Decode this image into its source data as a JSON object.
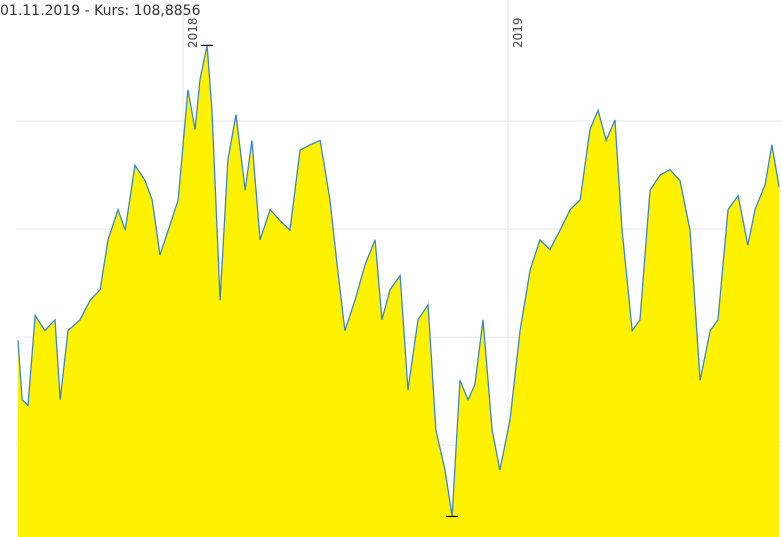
{
  "chart_data": {
    "type": "area",
    "title": "01.11.2019  -  Kurs: 108,8856",
    "x": [
      2017.492,
      2017.505,
      2017.523,
      2017.545,
      2017.575,
      2017.606,
      2017.622,
      2017.646,
      2017.683,
      2017.714,
      2017.745,
      2017.769,
      2017.8,
      2017.822,
      2017.852,
      2017.883,
      2017.905,
      2017.929,
      2017.96,
      2017.985,
      2018.015,
      2018.037,
      2018.052,
      2018.074,
      2018.089,
      2018.114,
      2018.138,
      2018.163,
      2018.191,
      2018.212,
      2018.237,
      2018.268,
      2018.298,
      2018.329,
      2018.36,
      2018.391,
      2018.422,
      2018.452,
      2018.474,
      2018.498,
      2018.529,
      2018.56,
      2018.591,
      2018.612,
      2018.637,
      2018.668,
      2018.692,
      2018.723,
      2018.754,
      2018.778,
      2018.806,
      2018.828,
      2018.852,
      2018.877,
      2018.898,
      2018.923,
      2018.951,
      2018.975,
      2019.006,
      2019.037,
      2019.068,
      2019.098,
      2019.129,
      2019.16,
      2019.191,
      2019.222,
      2019.252,
      2019.277,
      2019.302,
      2019.329,
      2019.351,
      2019.382,
      2019.406,
      2019.437,
      2019.468,
      2019.498,
      2019.529,
      2019.56,
      2019.591,
      2019.622,
      2019.646,
      2019.677,
      2019.708,
      2019.738,
      2019.76,
      2019.791,
      2019.812,
      2019.834
    ],
    "series": [
      {
        "color": "#3a87c8",
        "fill": "#fff200",
        "values": [
          94.7,
          89.2,
          88.7,
          97.0,
          95.6,
          96.6,
          89.2,
          95.6,
          96.6,
          98.4,
          99.4,
          104.0,
          106.8,
          104.9,
          110.9,
          109.5,
          107.7,
          102.6,
          105.4,
          107.7,
          117.9,
          114.2,
          118.8,
          122.0,
          116.0,
          98.4,
          111.4,
          115.6,
          108.6,
          113.2,
          104.0,
          106.8,
          105.8,
          104.9,
          112.3,
          112.8,
          113.2,
          107.7,
          101.7,
          95.6,
          98.4,
          101.7,
          104.0,
          96.6,
          99.4,
          100.7,
          90.1,
          96.6,
          98.0,
          86.4,
          82.7,
          78.4,
          91.0,
          89.2,
          90.6,
          96.6,
          86.4,
          82.7,
          87.3,
          95.6,
          101.2,
          104.0,
          103.1,
          104.9,
          106.8,
          107.7,
          114.2,
          116.0,
          113.2,
          115.1,
          104.9,
          95.6,
          96.6,
          108.6,
          110.0,
          110.5,
          109.5,
          104.9,
          91.0,
          95.6,
          96.6,
          106.8,
          108.1,
          103.5,
          106.8,
          109.1,
          112.8,
          108.9
        ]
      }
    ],
    "xlim": [
      2017.486,
      2019.843
    ],
    "xticks": [
      2018,
      2019
    ],
    "ylim": [
      76.5,
      126.2
    ],
    "yticks": [
      85,
      95,
      105,
      115
    ],
    "grid": true
  }
}
